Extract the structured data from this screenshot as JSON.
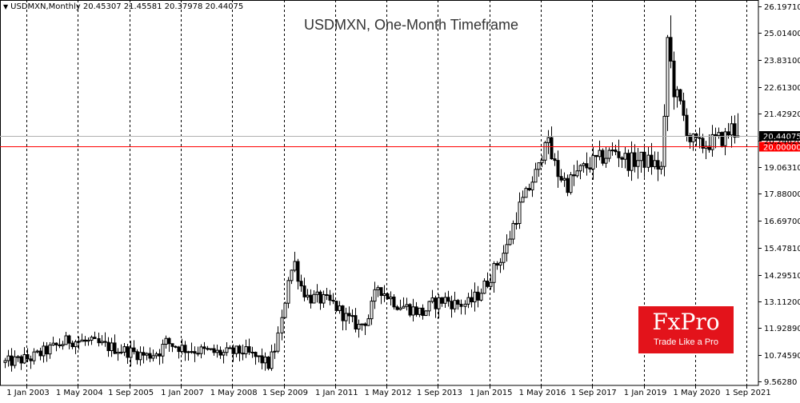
{
  "header": {
    "symbol_line": "USDMXN,Monthly  20.45307 21.45581 20.37978 20.44075"
  },
  "badge": {
    "logo": "FxPro",
    "tagline": "Trade Like a Pro"
  },
  "colors": {
    "background": "#ffffff",
    "candles": "#000000",
    "level_line": "#ff0000",
    "current_price_bg": "#000000",
    "level_price_bg": "#ff0000",
    "badge": "#e3131b"
  },
  "chart_data": {
    "type": "candlestick",
    "title": "USDMXN, One-Month Timeframe",
    "symbol": "USDMXN",
    "timeframe": "Monthly",
    "ohlc_last": {
      "open": 20.45307,
      "high": 21.45581,
      "low": 20.37978,
      "close": 20.44075
    },
    "current_price_label": "20.44075",
    "horizontal_level": {
      "value": 20.0,
      "label": "20.00000",
      "color": "#ff0000"
    },
    "ylim": [
      9.5,
      26.5
    ],
    "y_ticks": [
      "26.19710",
      "25.01400",
      "23.83100",
      "22.61300",
      "21.42920",
      "20.24620",
      "19.06310",
      "17.88000",
      "16.69700",
      "15.47810",
      "14.29510",
      "13.11200",
      "11.92890",
      "10.74590",
      "9.56280"
    ],
    "x_ticks": [
      "1 Jan 2003",
      "1 May 2004",
      "1 Sep 2005",
      "1 Jan 2007",
      "1 May 2008",
      "1 Sep 2009",
      "1 Jan 2011",
      "1 May 2012",
      "1 Sep 2013",
      "1 Jan 2015",
      "1 May 2016",
      "1 Sep 2017",
      "1 Jan 2019",
      "1 May 2020",
      "1 Sep 2021"
    ],
    "grid": "vertical dashed separators at each x tick",
    "series": [
      {
        "name": "USDMXN Monthly",
        "path_anchors": [
          [
            0,
            10.4
          ],
          [
            8,
            10.6
          ],
          [
            14,
            11.0
          ],
          [
            20,
            11.4
          ],
          [
            26,
            11.3
          ],
          [
            32,
            11.1
          ],
          [
            38,
            10.9
          ],
          [
            44,
            10.7
          ],
          [
            48,
            10.9
          ],
          [
            50,
            11.3
          ],
          [
            56,
            11.0
          ],
          [
            62,
            10.9
          ],
          [
            68,
            10.8
          ],
          [
            74,
            10.9
          ],
          [
            80,
            10.5
          ],
          [
            82,
            10.3
          ],
          [
            84,
            11.0
          ],
          [
            86,
            12.2
          ],
          [
            88,
            14.2
          ],
          [
            90,
            14.8
          ],
          [
            92,
            13.8
          ],
          [
            94,
            13.3
          ],
          [
            98,
            13.2
          ],
          [
            102,
            13.0
          ],
          [
            106,
            12.4
          ],
          [
            110,
            12.0
          ],
          [
            113,
            12.4
          ],
          [
            116,
            13.8
          ],
          [
            118,
            13.5
          ],
          [
            122,
            13.0
          ],
          [
            126,
            12.8
          ],
          [
            130,
            12.6
          ],
          [
            133,
            13.0
          ],
          [
            137,
            13.2
          ],
          [
            140,
            13.0
          ],
          [
            144,
            13.0
          ],
          [
            147,
            13.4
          ],
          [
            150,
            14.0
          ],
          [
            153,
            14.8
          ],
          [
            156,
            15.5
          ],
          [
            158,
            16.5
          ],
          [
            160,
            17.3
          ],
          [
            162,
            17.8
          ],
          [
            164,
            18.5
          ],
          [
            166,
            19.0
          ],
          [
            168,
            20.5
          ],
          [
            170,
            19.5
          ],
          [
            172,
            18.8
          ],
          [
            175,
            18.3
          ],
          [
            178,
            18.8
          ],
          [
            182,
            19.2
          ],
          [
            186,
            19.5
          ],
          [
            190,
            19.8
          ],
          [
            194,
            19.3
          ],
          [
            198,
            19.4
          ],
          [
            202,
            19.2
          ],
          [
            204,
            19.0
          ],
          [
            205,
            21.0
          ],
          [
            206,
            24.8
          ],
          [
            208,
            22.5
          ],
          [
            210,
            21.8
          ],
          [
            213,
            20.3
          ],
          [
            216,
            20.0
          ],
          [
            220,
            20.2
          ],
          [
            224,
            20.4
          ],
          [
            226,
            20.8
          ],
          [
            228,
            20.45
          ]
        ]
      }
    ]
  }
}
